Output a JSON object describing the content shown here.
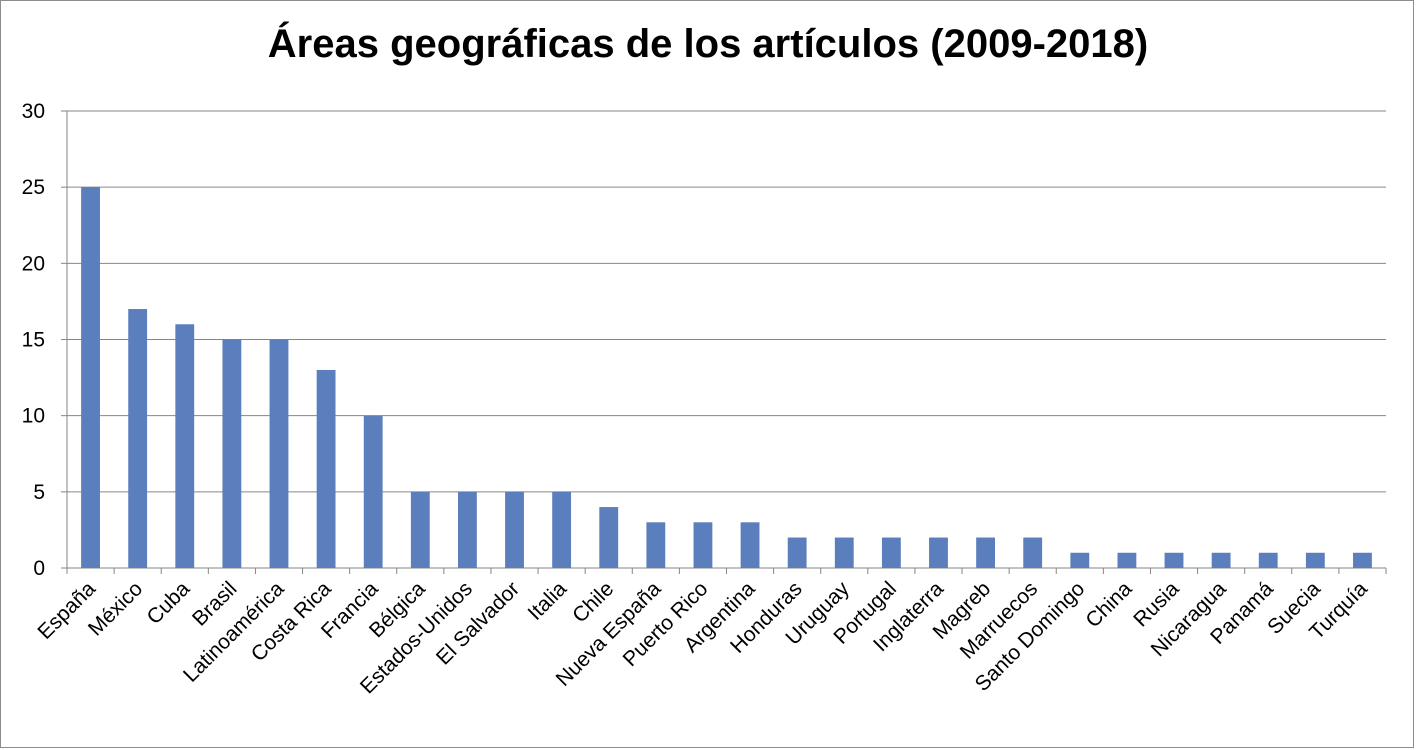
{
  "chart_data": {
    "type": "bar",
    "title": "Áreas geográficas de los artículos (2009-2018)",
    "xlabel": "",
    "ylabel": "",
    "ylim": [
      0,
      30
    ],
    "yticks": [
      0,
      5,
      10,
      15,
      20,
      25,
      30
    ],
    "grid": true,
    "legend": "none",
    "bar_color": "#5b7fbd",
    "categories": [
      "España",
      "México",
      "Cuba",
      "Brasil",
      "Latinoamérica",
      "Costa Rica",
      "Francia",
      "Bélgica",
      "Estados-Unidos",
      "El Salvador",
      "Italia",
      "Chile",
      "Nueva España",
      "Puerto Rico",
      "Argentina",
      "Honduras",
      "Uruguay",
      "Portugal",
      "Inglaterra",
      "Magreb",
      "Marruecos",
      "Santo Domingo",
      "China",
      "Rusia",
      "Nicaragua",
      "Panamá",
      "Suecia",
      "Turquía"
    ],
    "values": [
      25,
      17,
      16,
      15,
      15,
      13,
      10,
      5,
      5,
      5,
      5,
      4,
      3,
      3,
      3,
      2,
      2,
      2,
      2,
      2,
      2,
      1,
      1,
      1,
      1,
      1,
      1,
      1
    ]
  }
}
